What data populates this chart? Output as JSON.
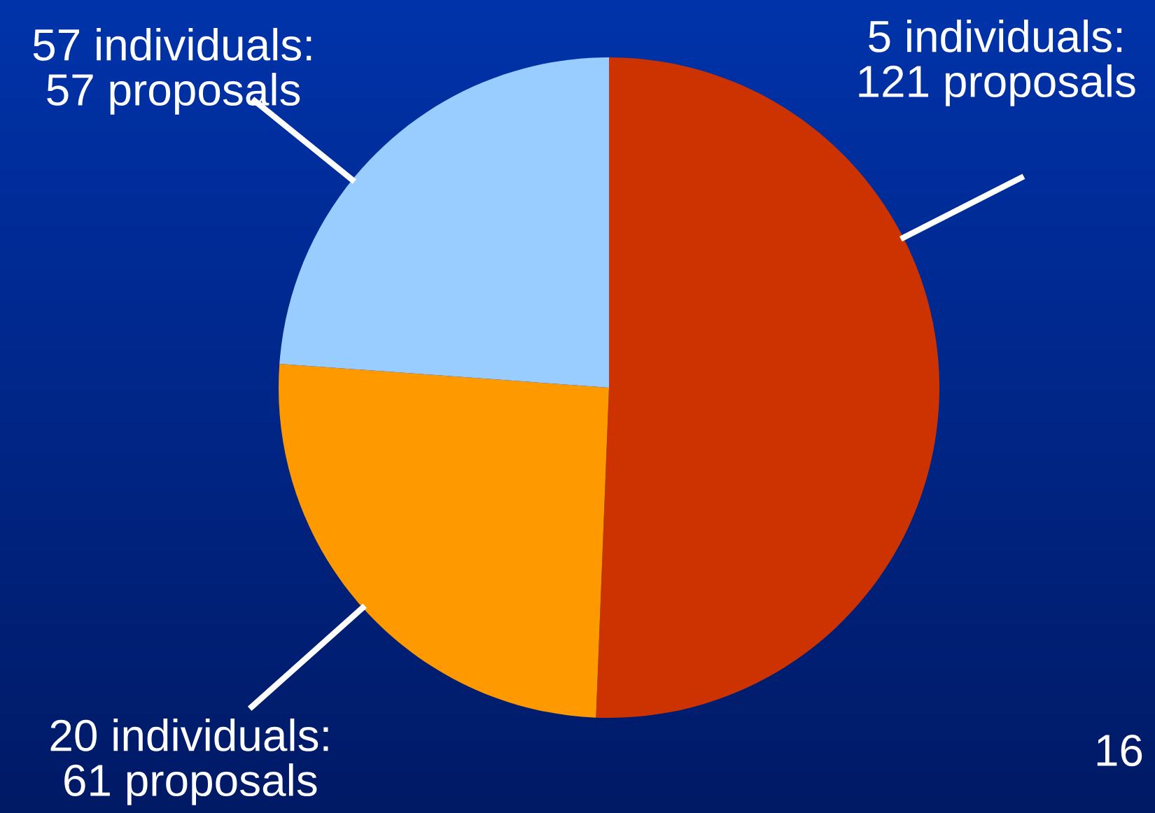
{
  "chart_data": {
    "type": "pie",
    "categories": [
      "5 individuals:\n121 proposals",
      "20 individuals:\n61 proposals",
      "57 individuals:\n57 proposals"
    ],
    "values": [
      121,
      61,
      57
    ],
    "colors": [
      "#cc3300",
      "#ff9900",
      "#99ccff"
    ],
    "annotations": [
      "16"
    ]
  }
}
